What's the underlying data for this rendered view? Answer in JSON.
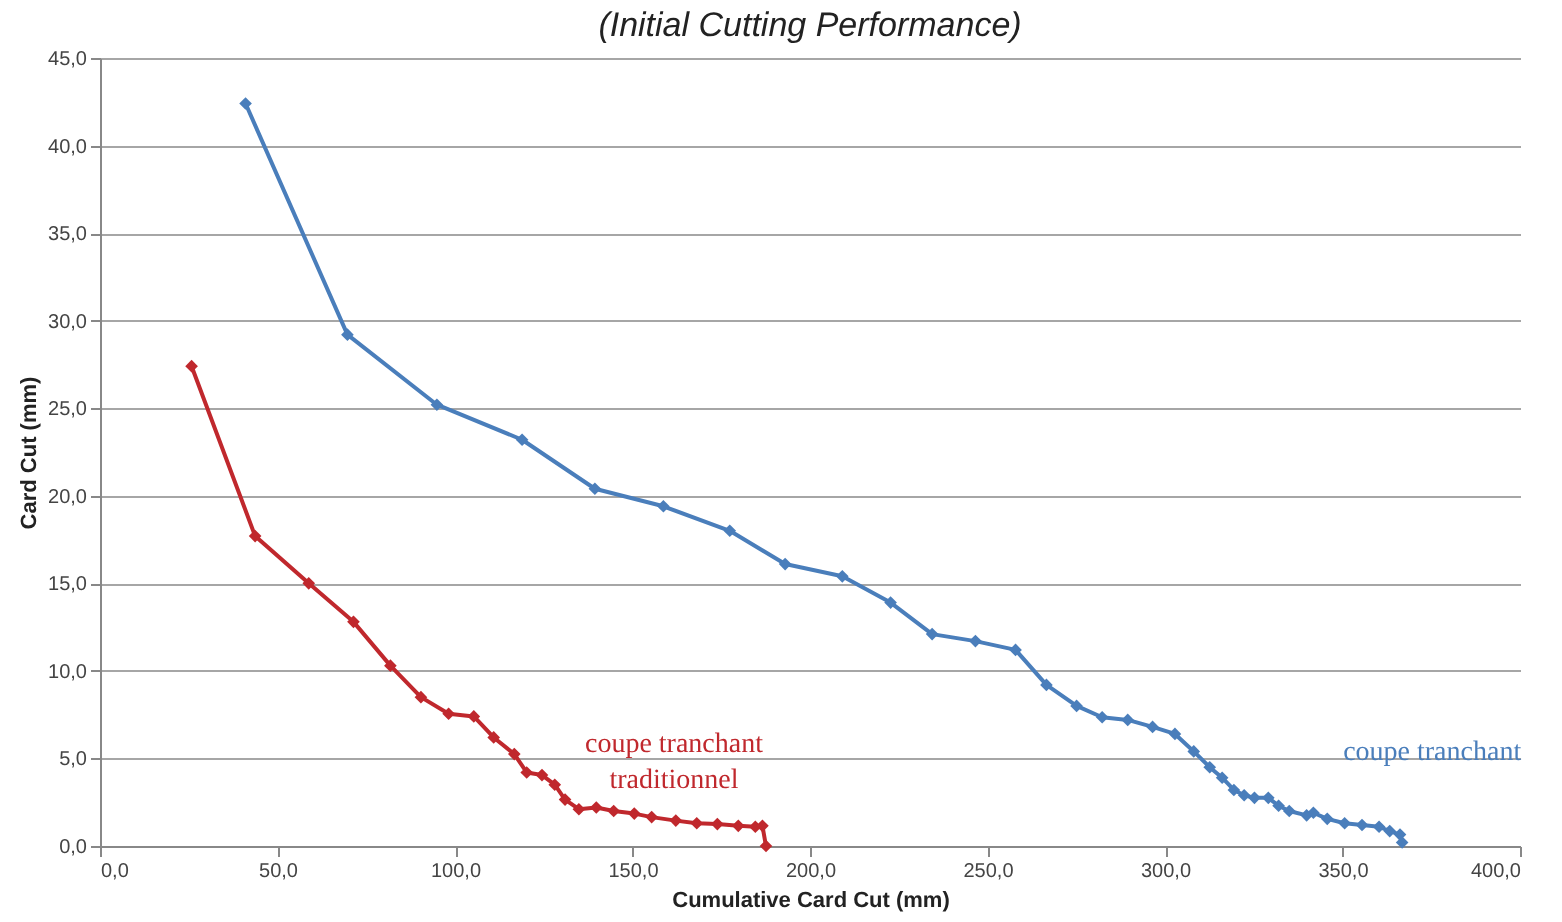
{
  "chart_data": {
    "type": "line",
    "title": "(Initial Cutting Performance)",
    "xlabel": "Cumulative Card Cut (mm)",
    "ylabel": "Card Cut (mm)",
    "xlim": [
      0,
      400
    ],
    "xticks": [
      {
        "value": 0,
        "label": "0,0"
      },
      {
        "value": 50,
        "label": "50,0"
      },
      {
        "value": 100,
        "label": "100,0"
      },
      {
        "value": 150,
        "label": "150,0"
      },
      {
        "value": 200,
        "label": "200,0"
      },
      {
        "value": 250,
        "label": "250,0"
      },
      {
        "value": 300,
        "label": "300,0"
      },
      {
        "value": 350,
        "label": "350,0"
      },
      {
        "value": 400,
        "label": "400,0"
      }
    ],
    "ylim": [
      0,
      45
    ],
    "yticks": [
      {
        "value": 0,
        "label": "0,0"
      },
      {
        "value": 5,
        "label": "5,0"
      },
      {
        "value": 10,
        "label": "10,0"
      },
      {
        "value": 15,
        "label": "15,0"
      },
      {
        "value": 20,
        "label": "20,0"
      },
      {
        "value": 25,
        "label": "25,0"
      },
      {
        "value": 30,
        "label": "30,0"
      },
      {
        "value": 35,
        "label": "35,0"
      },
      {
        "value": 40,
        "label": "40,0"
      },
      {
        "value": 45,
        "label": "45,0"
      }
    ],
    "grid": "y",
    "legend": false,
    "marker": "diamond",
    "line_style": "solid",
    "series": [
      {
        "name": "coupe tranchant",
        "color": "#4a7ebb",
        "x": [
          41.0,
          69.7,
          94.9,
          118.9,
          139.4,
          158.7,
          177.4,
          193,
          209.1,
          222.7,
          234.4,
          246.6,
          257.9,
          266.6,
          275.1,
          282.3,
          289.5,
          296.5,
          302.8,
          308.1,
          312.6,
          316.1,
          319.4,
          322.3,
          325.2,
          329.1,
          332,
          335,
          339.9,
          341.8,
          345.7,
          350.6,
          355.5,
          360.3,
          363.3,
          366.2,
          366.8
        ],
        "values": [
          42.4,
          29.2,
          25.2,
          23.2,
          20.4,
          19.4,
          18.0,
          16.1,
          15.4,
          13.9,
          12.1,
          11.7,
          11.2,
          9.2,
          8.0,
          7.35,
          7.2,
          6.8,
          6.4,
          5.4,
          4.5,
          3.9,
          3.2,
          2.9,
          2.75,
          2.75,
          2.3,
          2.0,
          1.75,
          1.9,
          1.55,
          1.3,
          1.2,
          1.1,
          0.85,
          0.65,
          0.2
        ]
      },
      {
        "name": "coupe tranchant traditionnel",
        "color": "#c0282d",
        "x": [
          25.8,
          43.7,
          58.8,
          71.4,
          81.8,
          90.4,
          98.2,
          105.3,
          110.9,
          116.7,
          120.2,
          124.5,
          128.1,
          131,
          134.9,
          139.8,
          144.7,
          150.5,
          155.4,
          162.2,
          168.1,
          173.9,
          179.8,
          184.6,
          186.6,
          187.6
        ],
        "values": [
          27.4,
          17.7,
          15.0,
          12.8,
          10.3,
          8.5,
          7.55,
          7.4,
          6.2,
          5.25,
          4.2,
          4.05,
          3.5,
          2.65,
          2.1,
          2.2,
          2.0,
          1.85,
          1.65,
          1.45,
          1.3,
          1.25,
          1.15,
          1.1,
          1.15,
          0
        ]
      }
    ]
  }
}
